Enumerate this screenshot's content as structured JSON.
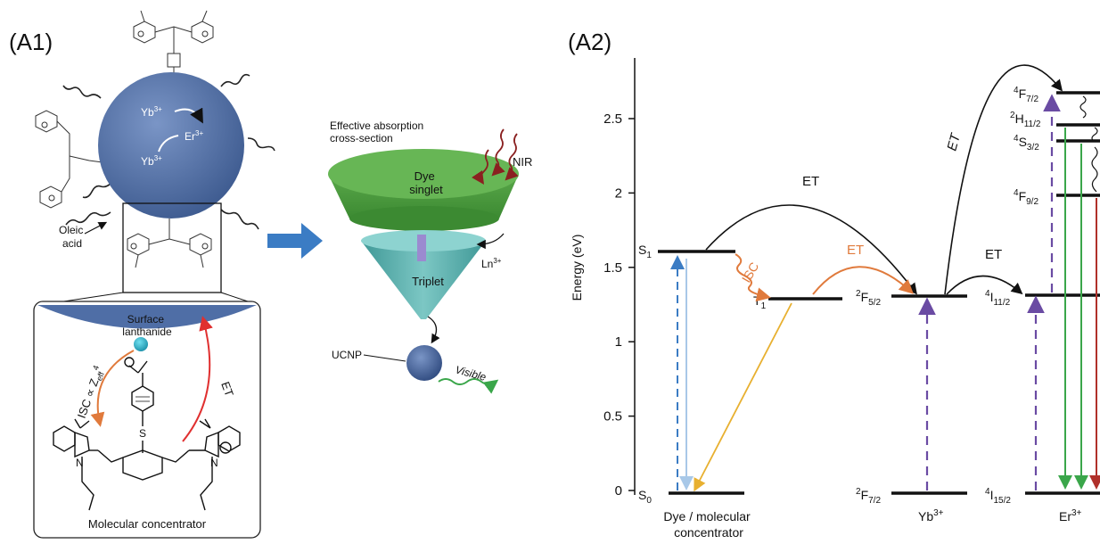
{
  "panel_a1": {
    "label": "(A1)",
    "yb_top": "Yb",
    "yb_top_sup": "3+",
    "er": "Er",
    "er_sup": "3+",
    "yb_bottom": "Yb",
    "yb_bottom_sup": "3+",
    "oleic_acid_1": "Oleic",
    "oleic_acid_2": "acid",
    "surface_1": "Surface",
    "surface_2": "lanthanide",
    "isc_label": "ISC ∝ Z",
    "isc_sub": "eff",
    "isc_sup": "4",
    "et_label": "ET",
    "molecular_concentrator": "Molecular concentrator",
    "effective_absorption_1": "Effective absorption",
    "effective_absorption_2": "cross-section",
    "nir": "NIR",
    "dye_1": "Dye",
    "dye_2": "singlet",
    "ln": "Ln",
    "ln_sup": "3+",
    "triplet": "Triplet",
    "ucnp": "UCNP",
    "visible": "Visible"
  },
  "panel_a2": {
    "label": "(A2)",
    "ylabel": "Energy (eV)",
    "yticks": [
      "0",
      "0.5",
      "1",
      "1.5",
      "2",
      "2.5"
    ],
    "s1": "S",
    "s1_sub": "1",
    "s0": "S",
    "s0_sub": "0",
    "t1": "T",
    "t1_sub": "1",
    "isc": "ISC",
    "et_dye_er": "ET",
    "et_t1_yb": "ET",
    "et_yb_er": "ET",
    "et_yb_er_upper": "ET",
    "f52_pre": "2",
    "f52": "F",
    "f52_sub": "5/2",
    "f72_pre": "2",
    "f72": "F",
    "f72_sub": "7/2",
    "i112_pre": "4",
    "i112": "I",
    "i112_sub": "11/2",
    "i152_pre": "4",
    "i152": "I",
    "i152_sub": "15/2",
    "f92_pre": "4",
    "f92": "F",
    "f92_sub": "9/2",
    "s32_pre": "4",
    "s32": "S",
    "s32_sub": "3/2",
    "h112_pre": "2",
    "h112": "H",
    "h112_sub": "11/2",
    "f72er_pre": "4",
    "f72er": "F",
    "f72er_sub": "7/2",
    "dye_label_1": "Dye / molecular",
    "dye_label_2": "concentrator",
    "yb_label": "Yb",
    "yb_label_sup": "3+",
    "er_label": "Er",
    "er_label_sup": "3+"
  },
  "colors": {
    "sphere": "#4f6ea6",
    "dye_disc": "#4b9b3e",
    "cone": "#5fb2b0",
    "isc_orange": "#e07a3c",
    "et_red": "#e03030",
    "nir_arrow": "#8a2020",
    "visible_green": "#3aa64a",
    "blue_arrow": "#3b7cc4",
    "purple_dash": "#6a4ba3",
    "yellow_arrow": "#e8b030",
    "light_blue": "#a8c8e8"
  }
}
